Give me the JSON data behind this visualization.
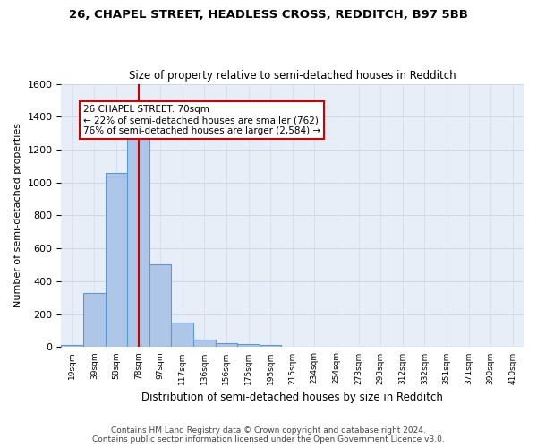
{
  "title": "26, CHAPEL STREET, HEADLESS CROSS, REDDITCH, B97 5BB",
  "subtitle": "Size of property relative to semi-detached houses in Redditch",
  "xlabel": "Distribution of semi-detached houses by size in Redditch",
  "ylabel": "Number of semi-detached properties",
  "bar_color": "#aec6e8",
  "bar_edge_color": "#5b9bd5",
  "grid_color": "#d0d8e8",
  "bg_color": "#e8eef8",
  "annotation_box_color": "#cc0000",
  "annotation_text": "26 CHAPEL STREET: 70sqm\n← 22% of semi-detached houses are smaller (762)\n76% of semi-detached houses are larger (2,584) →",
  "property_line_x": 3,
  "footer_line1": "Contains HM Land Registry data © Crown copyright and database right 2024.",
  "footer_line2": "Contains public sector information licensed under the Open Government Licence v3.0.",
  "categories": [
    "19sqm",
    "39sqm",
    "58sqm",
    "78sqm",
    "97sqm",
    "117sqm",
    "136sqm",
    "156sqm",
    "175sqm",
    "195sqm",
    "215sqm",
    "234sqm",
    "254sqm",
    "273sqm",
    "293sqm",
    "312sqm",
    "332sqm",
    "351sqm",
    "371sqm",
    "390sqm",
    "410sqm"
  ],
  "values": [
    15,
    330,
    1060,
    1290,
    505,
    150,
    45,
    22,
    18,
    12,
    0,
    0,
    0,
    0,
    0,
    0,
    0,
    0,
    0,
    0,
    0
  ],
  "ylim": [
    0,
    1600
  ],
  "yticks": [
    0,
    200,
    400,
    600,
    800,
    1000,
    1200,
    1400,
    1600
  ],
  "num_bins": 21
}
